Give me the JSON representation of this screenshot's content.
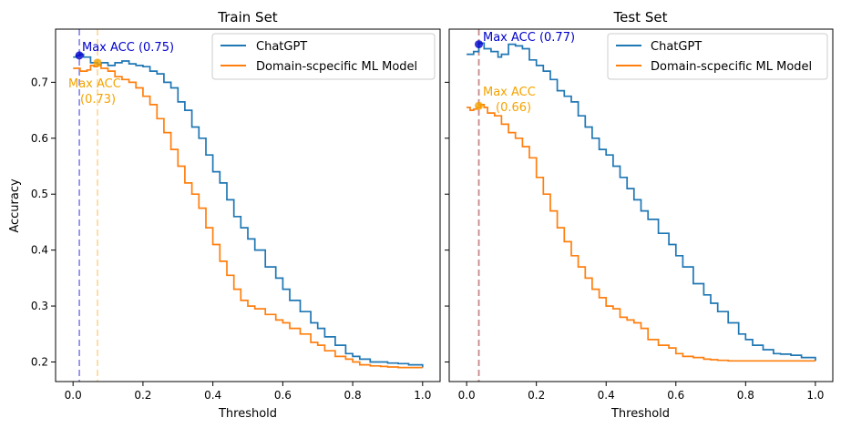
{
  "colors": {
    "chatgpt": "#1f77b4",
    "ml": "#ff7f0e",
    "annot_chatgpt": "#0000cc",
    "annot_ml": "#f5a300",
    "vline_chatgpt": "#8080ee",
    "vline_ml": "#ffd58f",
    "vline_test": "#c78a8a"
  },
  "chart_data": [
    {
      "type": "line",
      "title": "Train Set",
      "xlabel": "Threshold",
      "ylabel": "Accuracy",
      "xlim": [
        -0.05,
        1.05
      ],
      "ylim": [
        0.165,
        0.795
      ],
      "xticks": [
        0.0,
        0.2,
        0.4,
        0.6,
        0.8,
        1.0
      ],
      "xtick_labels": [
        "0.0",
        "0.2",
        "0.4",
        "0.6",
        "0.8",
        "1.0"
      ],
      "yticks": [
        0.2,
        0.3,
        0.4,
        0.5,
        0.6,
        0.7
      ],
      "ytick_labels": [
        "0.2",
        "0.3",
        "0.4",
        "0.5",
        "0.6",
        "0.7"
      ],
      "legend": "top-right",
      "series": [
        {
          "name": "ChatGPT",
          "color_key": "chatgpt",
          "x": [
            0.0,
            0.01,
            0.02,
            0.03,
            0.05,
            0.07,
            0.08,
            0.1,
            0.12,
            0.14,
            0.16,
            0.18,
            0.2,
            0.22,
            0.24,
            0.26,
            0.28,
            0.3,
            0.32,
            0.34,
            0.36,
            0.38,
            0.4,
            0.42,
            0.44,
            0.46,
            0.48,
            0.5,
            0.52,
            0.55,
            0.58,
            0.6,
            0.62,
            0.65,
            0.68,
            0.7,
            0.72,
            0.75,
            0.78,
            0.8,
            0.82,
            0.85,
            0.88,
            0.9,
            0.93,
            0.96,
            1.0
          ],
          "y": [
            0.745,
            0.748,
            0.75,
            0.745,
            0.735,
            0.732,
            0.735,
            0.73,
            0.735,
            0.738,
            0.733,
            0.73,
            0.728,
            0.72,
            0.715,
            0.7,
            0.69,
            0.665,
            0.65,
            0.62,
            0.6,
            0.57,
            0.54,
            0.52,
            0.49,
            0.46,
            0.44,
            0.42,
            0.4,
            0.37,
            0.35,
            0.33,
            0.31,
            0.29,
            0.27,
            0.26,
            0.245,
            0.23,
            0.215,
            0.21,
            0.205,
            0.2,
            0.2,
            0.198,
            0.197,
            0.195,
            0.19
          ]
        },
        {
          "name": "Domain-scpecific ML Model",
          "color_key": "ml",
          "x": [
            0.0,
            0.02,
            0.04,
            0.05,
            0.06,
            0.07,
            0.08,
            0.1,
            0.12,
            0.14,
            0.16,
            0.18,
            0.2,
            0.22,
            0.24,
            0.26,
            0.28,
            0.3,
            0.32,
            0.34,
            0.36,
            0.38,
            0.4,
            0.42,
            0.44,
            0.46,
            0.48,
            0.5,
            0.52,
            0.55,
            0.58,
            0.6,
            0.62,
            0.65,
            0.68,
            0.7,
            0.72,
            0.75,
            0.78,
            0.8,
            0.82,
            0.85,
            0.88,
            0.9,
            0.93,
            0.96,
            1.0
          ],
          "y": [
            0.725,
            0.72,
            0.722,
            0.73,
            0.728,
            0.73,
            0.725,
            0.72,
            0.71,
            0.705,
            0.7,
            0.69,
            0.675,
            0.66,
            0.635,
            0.61,
            0.58,
            0.55,
            0.52,
            0.5,
            0.475,
            0.44,
            0.41,
            0.38,
            0.355,
            0.33,
            0.31,
            0.3,
            0.295,
            0.285,
            0.275,
            0.27,
            0.26,
            0.25,
            0.235,
            0.23,
            0.22,
            0.21,
            0.205,
            0.2,
            0.195,
            0.193,
            0.192,
            0.191,
            0.19,
            0.19,
            0.19
          ]
        }
      ],
      "max_markers": [
        {
          "x": 0.018,
          "y": 0.748,
          "label": "Max ACC (0.75)",
          "color_key": "annot_chatgpt",
          "vline_color_key": "vline_chatgpt"
        },
        {
          "x": 0.07,
          "y": 0.735,
          "label_lines": [
            "Max ACC",
            "(0.73)"
          ],
          "color_key": "annot_ml",
          "vline_color_key": "vline_ml"
        }
      ]
    },
    {
      "type": "line",
      "title": "Test Set",
      "xlabel": "Threshold",
      "ylabel": "",
      "xlim": [
        -0.05,
        1.05
      ],
      "ylim": [
        0.165,
        0.795
      ],
      "xticks": [
        0.0,
        0.2,
        0.4,
        0.6,
        0.8,
        1.0
      ],
      "xtick_labels": [
        "0.0",
        "0.2",
        "0.4",
        "0.6",
        "0.8",
        "1.0"
      ],
      "yticks": [
        0.2,
        0.3,
        0.4,
        0.5,
        0.6,
        0.7
      ],
      "legend": "top-right",
      "series": [
        {
          "name": "ChatGPT",
          "color_key": "chatgpt",
          "x": [
            0.0,
            0.02,
            0.035,
            0.05,
            0.07,
            0.09,
            0.1,
            0.12,
            0.14,
            0.16,
            0.18,
            0.2,
            0.22,
            0.24,
            0.26,
            0.28,
            0.3,
            0.32,
            0.34,
            0.36,
            0.38,
            0.4,
            0.42,
            0.44,
            0.46,
            0.48,
            0.5,
            0.52,
            0.55,
            0.58,
            0.6,
            0.62,
            0.65,
            0.68,
            0.7,
            0.72,
            0.75,
            0.78,
            0.8,
            0.82,
            0.85,
            0.88,
            0.9,
            0.93,
            0.96,
            1.0
          ],
          "y": [
            0.75,
            0.755,
            0.77,
            0.76,
            0.755,
            0.745,
            0.75,
            0.768,
            0.765,
            0.76,
            0.74,
            0.73,
            0.72,
            0.705,
            0.685,
            0.675,
            0.665,
            0.64,
            0.62,
            0.6,
            0.58,
            0.57,
            0.55,
            0.53,
            0.51,
            0.49,
            0.47,
            0.455,
            0.43,
            0.41,
            0.39,
            0.37,
            0.34,
            0.32,
            0.305,
            0.29,
            0.27,
            0.25,
            0.24,
            0.23,
            0.222,
            0.215,
            0.214,
            0.212,
            0.208,
            0.202
          ]
        },
        {
          "name": "Domain-scpecific ML Model",
          "color_key": "ml",
          "x": [
            0.0,
            0.01,
            0.02,
            0.03,
            0.04,
            0.05,
            0.06,
            0.08,
            0.1,
            0.12,
            0.14,
            0.16,
            0.18,
            0.2,
            0.22,
            0.24,
            0.26,
            0.28,
            0.3,
            0.32,
            0.34,
            0.36,
            0.38,
            0.4,
            0.42,
            0.44,
            0.46,
            0.48,
            0.5,
            0.52,
            0.55,
            0.58,
            0.6,
            0.62,
            0.65,
            0.68,
            0.7,
            0.72,
            0.75,
            0.78,
            0.8,
            0.82,
            0.85,
            0.88,
            0.9,
            0.93,
            0.96,
            1.0
          ],
          "y": [
            0.655,
            0.65,
            0.652,
            0.655,
            0.66,
            0.655,
            0.645,
            0.64,
            0.625,
            0.61,
            0.6,
            0.585,
            0.565,
            0.53,
            0.5,
            0.47,
            0.44,
            0.415,
            0.39,
            0.37,
            0.35,
            0.33,
            0.315,
            0.3,
            0.295,
            0.28,
            0.275,
            0.27,
            0.26,
            0.24,
            0.23,
            0.225,
            0.215,
            0.21,
            0.208,
            0.205,
            0.204,
            0.203,
            0.202,
            0.202,
            0.202,
            0.202,
            0.202,
            0.202,
            0.202,
            0.202,
            0.202,
            0.202
          ]
        }
      ],
      "max_markers": [
        {
          "x": 0.035,
          "y": 0.768,
          "label": "Max ACC (0.77)",
          "color_key": "annot_chatgpt",
          "vline_color_key": "vline_test"
        },
        {
          "x": 0.035,
          "y": 0.658,
          "label_lines": [
            "Max ACC",
            "(0.66)"
          ],
          "color_key": "annot_ml",
          "vline_color_key": "vline_test"
        }
      ]
    }
  ]
}
